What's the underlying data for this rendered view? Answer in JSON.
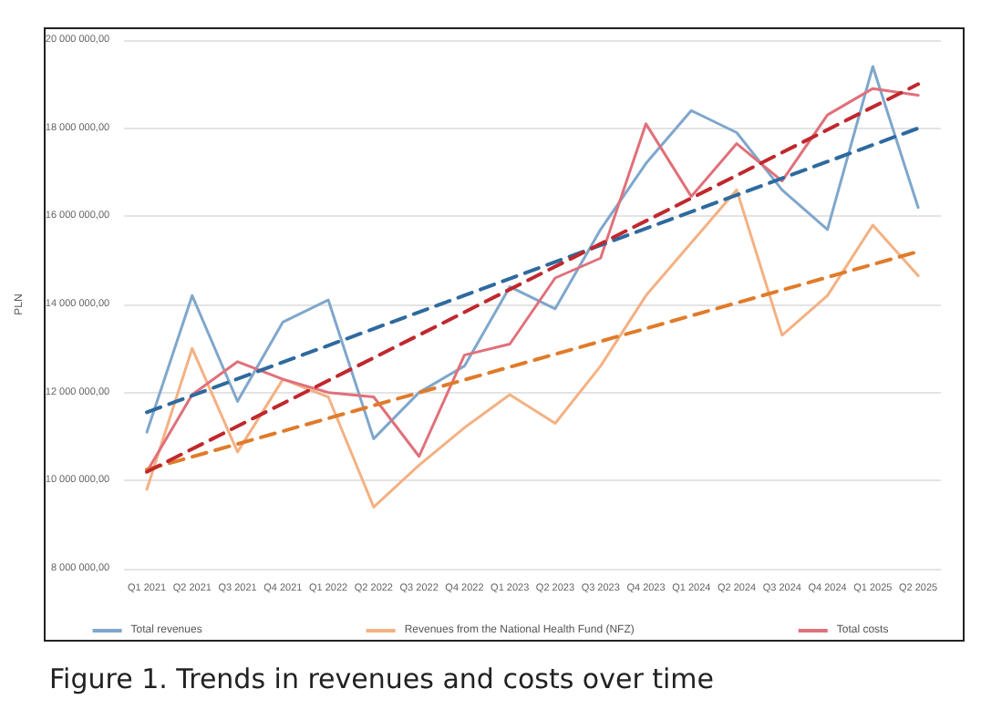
{
  "chart_data": {
    "type": "line",
    "title": "Figure 1. Trends in revenues and costs over time",
    "ylabel": "PLN",
    "categories": [
      "Q1 2021",
      "Q2 2021",
      "Q3 2021",
      "Q4 2021",
      "Q1 2022",
      "Q2 2022",
      "Q3 2022",
      "Q4 2022",
      "Q1 2023",
      "Q2 2023",
      "Q3 2023",
      "Q4 2023",
      "Q1 2024",
      "Q2 2024",
      "Q3 2024",
      "Q4 2024",
      "Q1 2025",
      "Q2 2025"
    ],
    "series": [
      {
        "name": "Total revenues",
        "color": "#7fa7cc",
        "values": [
          11100000,
          14200000,
          11800000,
          13600000,
          14100000,
          10950000,
          12000000,
          12600000,
          14400000,
          13900000,
          15700000,
          17200000,
          18400000,
          17900000,
          16600000,
          15700000,
          19400000,
          16200000
        ]
      },
      {
        "name": "Revenues from the National Health Fund (NFZ)",
        "color": "#f4b183",
        "values": [
          9800000,
          13000000,
          10650000,
          12300000,
          11900000,
          9400000,
          10350000,
          11200000,
          11950000,
          11300000,
          12600000,
          14200000,
          15400000,
          16600000,
          13300000,
          14200000,
          15800000,
          14650000
        ]
      },
      {
        "name": "Total costs",
        "color": "#e0707a",
        "values": [
          10200000,
          11950000,
          12700000,
          12300000,
          12000000,
          11900000,
          10550000,
          12850000,
          13100000,
          14600000,
          15050000,
          18100000,
          16450000,
          17650000,
          16800000,
          18300000,
          18900000,
          18750000
        ]
      },
      {
        "type": "line",
        "line_style": "dashed",
        "color": "#2e6a9e",
        "x": [
          "Q1 2021",
          "Q2 2025"
        ],
        "values": [
          11550000,
          18000000
        ]
      },
      {
        "type": "line",
        "line_style": "dashed",
        "color": "#e07b2a",
        "x": [
          "Q1 2021",
          "Q2 2025"
        ],
        "values": [
          10250000,
          15200000
        ]
      },
      {
        "type": "line",
        "line_style": "dashed",
        "color": "#c0282d",
        "x": [
          "Q1 2021",
          "Q2 2025"
        ],
        "values": [
          10200000,
          19000000
        ]
      }
    ],
    "ylim": [
      8000000,
      20000000
    ],
    "yticks": [
      {
        "value": 8000000,
        "label": "8 000 000,00"
      },
      {
        "value": 10000000,
        "label": "10 000 000,00"
      },
      {
        "value": 12000000,
        "label": "12 000 000,00"
      },
      {
        "value": 14000000,
        "label": "14 000 000,00"
      },
      {
        "value": 16000000,
        "label": "16 000 000,00"
      },
      {
        "value": 18000000,
        "label": "18 000 000,00"
      },
      {
        "value": 20000000,
        "label": "20 000 000,00"
      }
    ],
    "grid": "y",
    "legend": "bottom",
    "marker": "none",
    "line_style": "solid"
  }
}
